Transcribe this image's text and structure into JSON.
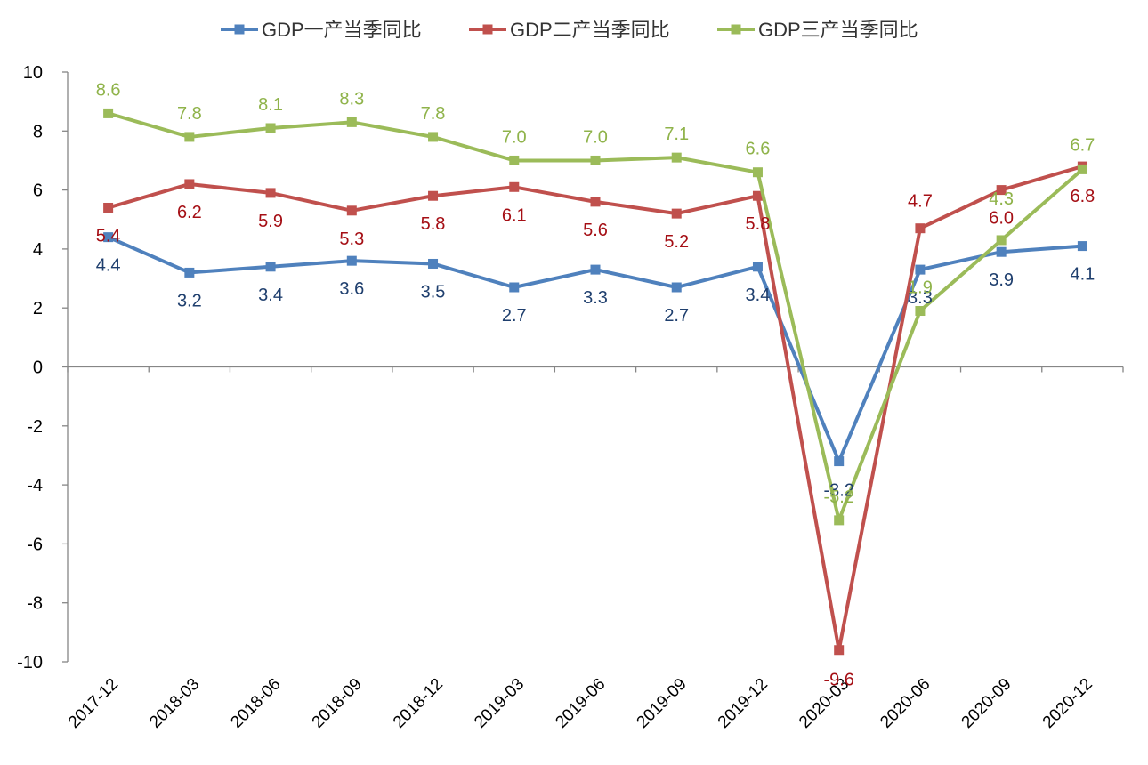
{
  "chart_data": {
    "type": "line",
    "title": "",
    "xlabel": "",
    "ylabel": "",
    "ylim": [
      -10,
      10
    ],
    "y_ticks": [
      10,
      8,
      6,
      4,
      2,
      0,
      -2,
      -4,
      -6,
      -8,
      -10
    ],
    "grid": false,
    "legend_position": "top",
    "categories": [
      "2017-12",
      "2018-03",
      "2018-06",
      "2018-09",
      "2018-12",
      "2019-03",
      "2019-06",
      "2019-09",
      "2019-12",
      "2020-03",
      "2020-06",
      "2020-09",
      "2020-12"
    ],
    "series": [
      {
        "name": "GDP一产当季同比",
        "color": "#4f81bd",
        "label_color": "#1f3f6e",
        "values": [
          4.4,
          3.2,
          3.4,
          3.6,
          3.5,
          2.7,
          3.3,
          2.7,
          3.4,
          -3.2,
          3.3,
          3.9,
          4.1
        ]
      },
      {
        "name": "GDP二产当季同比",
        "color": "#c0504d",
        "label_color": "#a50f15",
        "values": [
          5.4,
          6.2,
          5.9,
          5.3,
          5.8,
          6.1,
          5.6,
          5.2,
          5.8,
          -9.6,
          4.7,
          6.0,
          6.8
        ]
      },
      {
        "name": "GDP三产当季同比",
        "color": "#9bbb59",
        "label_color": "#8fb34a",
        "values": [
          8.6,
          7.8,
          8.1,
          8.3,
          7.8,
          7.0,
          7.0,
          7.1,
          6.6,
          -5.2,
          1.9,
          4.3,
          6.7
        ]
      }
    ]
  }
}
